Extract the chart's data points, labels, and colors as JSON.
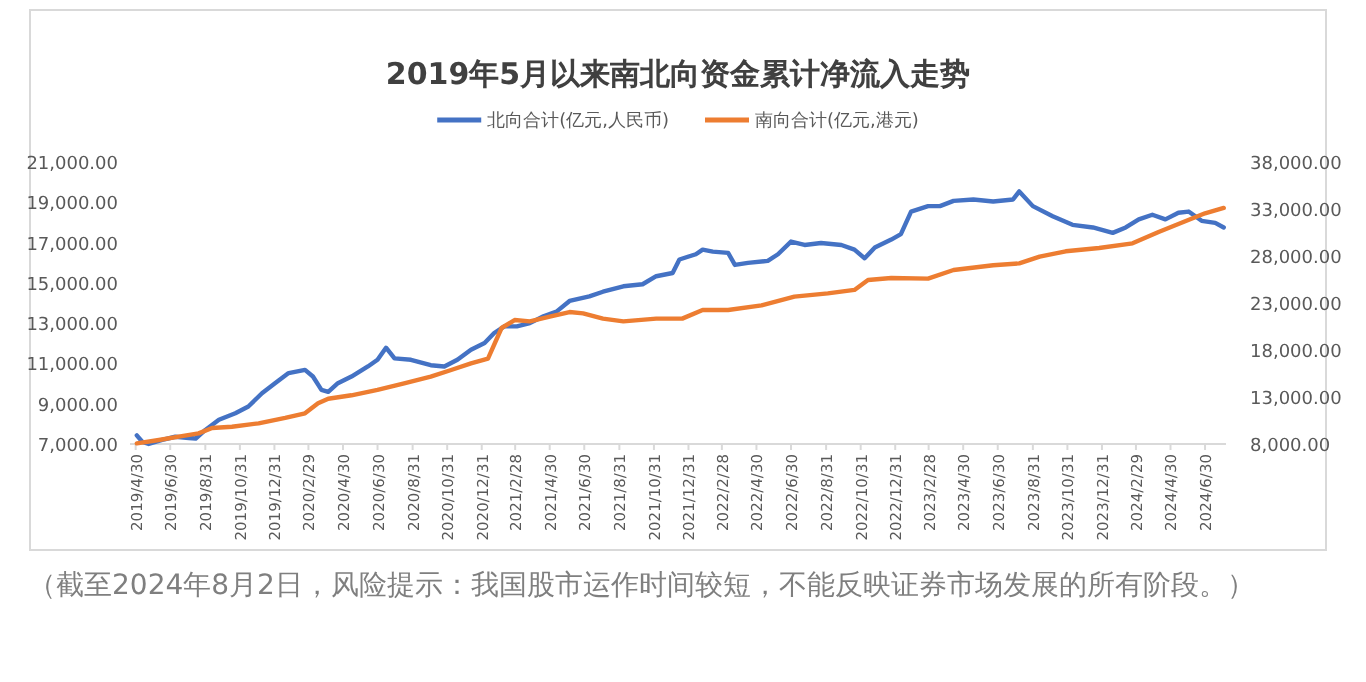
{
  "chart_data": {
    "type": "line",
    "title": "2019年5月以来南北向资金累计净流入走势",
    "annotations": [
      "（截至2024年8月2日，风险提示：我国股市运作时间较短，不能反映证券市场发展的所有阶段。）"
    ],
    "legend": "top",
    "marker": "none",
    "line_style": "solid",
    "grid": false,
    "xlim": [
      "2019-04-20",
      "2024-08-06"
    ],
    "xticks": [
      {
        "value": "2019-04-30",
        "label": "2019/4/30"
      },
      {
        "value": "2019-06-30",
        "label": "2019/6/30"
      },
      {
        "value": "2019-08-31",
        "label": "2019/8/31"
      },
      {
        "value": "2019-10-31",
        "label": "2019/10/31"
      },
      {
        "value": "2019-12-31",
        "label": "2019/12/31"
      },
      {
        "value": "2020-02-29",
        "label": "2020/2/29"
      },
      {
        "value": "2020-04-30",
        "label": "2020/4/30"
      },
      {
        "value": "2020-06-30",
        "label": "2020/6/30"
      },
      {
        "value": "2020-08-31",
        "label": "2020/8/31"
      },
      {
        "value": "2020-10-31",
        "label": "2020/10/31"
      },
      {
        "value": "2020-12-31",
        "label": "2020/12/31"
      },
      {
        "value": "2021-02-28",
        "label": "2021/2/28"
      },
      {
        "value": "2021-04-30",
        "label": "2021/4/30"
      },
      {
        "value": "2021-06-30",
        "label": "2021/6/30"
      },
      {
        "value": "2021-08-31",
        "label": "2021/8/31"
      },
      {
        "value": "2021-10-31",
        "label": "2021/10/31"
      },
      {
        "value": "2021-12-31",
        "label": "2021/12/31"
      },
      {
        "value": "2022-02-28",
        "label": "2022/2/28"
      },
      {
        "value": "2022-04-30",
        "label": "2022/4/30"
      },
      {
        "value": "2022-06-30",
        "label": "2022/6/30"
      },
      {
        "value": "2022-08-31",
        "label": "2022/8/31"
      },
      {
        "value": "2022-10-31",
        "label": "2022/10/31"
      },
      {
        "value": "2022-12-31",
        "label": "2022/12/31"
      },
      {
        "value": "2023-02-28",
        "label": "2023/2/28"
      },
      {
        "value": "2023-04-30",
        "label": "2023/4/30"
      },
      {
        "value": "2023-06-30",
        "label": "2023/6/30"
      },
      {
        "value": "2023-08-31",
        "label": "2023/8/31"
      },
      {
        "value": "2023-10-31",
        "label": "2023/10/31"
      },
      {
        "value": "2023-12-31",
        "label": "2023/12/31"
      },
      {
        "value": "2024-02-29",
        "label": "2024/2/29"
      },
      {
        "value": "2024-04-30",
        "label": "2024/4/30"
      },
      {
        "value": "2024-06-30",
        "label": "2024/6/30"
      }
    ],
    "ylim": [
      7000,
      21000
    ],
    "yticks": [
      {
        "value": 7000,
        "label": "7,000.00"
      },
      {
        "value": 9000,
        "label": "9,000.00"
      },
      {
        "value": 11000,
        "label": "11,000.00"
      },
      {
        "value": 13000,
        "label": "13,000.00"
      },
      {
        "value": 15000,
        "label": "15,000.00"
      },
      {
        "value": 17000,
        "label": "17,000.00"
      },
      {
        "value": 19000,
        "label": "19,000.00"
      },
      {
        "value": 21000,
        "label": "21,000.00"
      }
    ],
    "y2lim": [
      8000,
      38000
    ],
    "y2ticks": [
      {
        "value": 8000,
        "label": "8,000.00"
      },
      {
        "value": 13000,
        "label": "13,000.00"
      },
      {
        "value": 18000,
        "label": "18,000.00"
      },
      {
        "value": 23000,
        "label": "23,000.00"
      },
      {
        "value": 28000,
        "label": "28,000.00"
      },
      {
        "value": 33000,
        "label": "33,000.00"
      },
      {
        "value": 38000,
        "label": "38,000.00"
      }
    ],
    "series": [
      {
        "name": "北向合计(亿元,人民币)",
        "color": "#4472c4",
        "axis": "y",
        "x": [
          "2019-05-02",
          "2019-05-12",
          "2019-05-23",
          "2019-06-16",
          "2019-07-09",
          "2019-08-02",
          "2019-08-14",
          "2019-08-31",
          "2019-09-24",
          "2019-10-23",
          "2019-11-15",
          "2019-12-09",
          "2020-01-01",
          "2020-01-25",
          "2020-02-23",
          "2020-03-08",
          "2020-03-23",
          "2020-04-04",
          "2020-04-21",
          "2020-05-15",
          "2020-06-13",
          "2020-06-30",
          "2020-07-15",
          "2020-07-30",
          "2020-08-28",
          "2020-10-02",
          "2020-10-26",
          "2020-11-18",
          "2020-12-12",
          "2021-01-05",
          "2021-01-22",
          "2021-02-09",
          "2021-03-03",
          "2021-03-26",
          "2021-04-19",
          "2021-05-12",
          "2021-06-04",
          "2021-07-09",
          "2021-08-02",
          "2021-09-07",
          "2021-10-11",
          "2021-11-04",
          "2021-12-03",
          "2021-12-15",
          "2022-01-13",
          "2022-01-25",
          "2022-02-12",
          "2022-03-11",
          "2022-03-23",
          "2022-04-15",
          "2022-05-20",
          "2022-06-07",
          "2022-06-30",
          "2022-07-24",
          "2022-08-22",
          "2022-09-27",
          "2022-10-20",
          "2022-11-07",
          "2022-11-25",
          "2022-12-24",
          "2023-01-10",
          "2023-01-28",
          "2023-02-27",
          "2023-03-20",
          "2023-04-13",
          "2023-05-18",
          "2023-06-22",
          "2023-07-27",
          "2023-08-07",
          "2023-08-31",
          "2023-10-05",
          "2023-11-09",
          "2023-12-15",
          "2024-01-19",
          "2024-02-11",
          "2024-03-05",
          "2024-03-29",
          "2024-04-21",
          "2024-05-14",
          "2024-06-01",
          "2024-06-24",
          "2024-07-18",
          "2024-08-02"
        ],
        "values": [
          7430,
          7100,
          7000,
          7200,
          7360,
          7300,
          7270,
          7700,
          8200,
          8530,
          8860,
          9520,
          10020,
          10520,
          10680,
          10350,
          9690,
          9590,
          10020,
          10350,
          10850,
          11180,
          11780,
          11250,
          11180,
          10910,
          10850,
          11180,
          11680,
          12010,
          12510,
          12840,
          12840,
          13000,
          13340,
          13570,
          14100,
          14330,
          14560,
          14830,
          14930,
          15330,
          15490,
          16160,
          16420,
          16650,
          16550,
          16490,
          15890,
          15990,
          16090,
          16420,
          17050,
          16880,
          16980,
          16880,
          16650,
          16220,
          16750,
          17150,
          17420,
          18540,
          18810,
          18810,
          19070,
          19140,
          19040,
          19140,
          19540,
          18810,
          18310,
          17880,
          17750,
          17480,
          17750,
          18150,
          18380,
          18150,
          18480,
          18540,
          18080,
          17980,
          17750
        ]
      },
      {
        "name": "南向合计(亿元,港元)",
        "color": "#ed7d31",
        "axis": "y2",
        "x": [
          "2019-05-02",
          "2019-06-10",
          "2019-07-15",
          "2019-08-19",
          "2019-09-12",
          "2019-10-17",
          "2019-12-03",
          "2020-01-19",
          "2020-02-23",
          "2020-03-17",
          "2020-04-04",
          "2020-05-15",
          "2020-06-30",
          "2020-08-16",
          "2020-10-02",
          "2020-11-07",
          "2020-12-12",
          "2021-01-11",
          "2021-02-04",
          "2021-02-27",
          "2021-03-26",
          "2021-04-30",
          "2021-06-04",
          "2021-06-28",
          "2021-08-02",
          "2021-09-07",
          "2021-11-04",
          "2021-12-20",
          "2022-01-25",
          "2022-03-11",
          "2022-05-09",
          "2022-07-06",
          "2022-09-03",
          "2022-10-20",
          "2022-11-13",
          "2022-12-24",
          "2023-02-27",
          "2023-04-13",
          "2023-06-22",
          "2023-08-07",
          "2023-09-12",
          "2023-10-28",
          "2023-12-26",
          "2024-02-23",
          "2024-04-09",
          "2024-05-26",
          "2024-06-30",
          "2024-08-02"
        ],
        "values": [
          8070,
          8430,
          8780,
          9130,
          9700,
          9840,
          10200,
          10770,
          11260,
          12330,
          12820,
          13180,
          13750,
          14450,
          15160,
          15870,
          16580,
          17080,
          20340,
          21190,
          21050,
          21550,
          22040,
          21900,
          21340,
          21050,
          21340,
          21340,
          22260,
          22260,
          22750,
          23680,
          24030,
          24390,
          25450,
          25660,
          25590,
          26510,
          27010,
          27220,
          27930,
          28500,
          28850,
          29350,
          30560,
          31690,
          32540,
          33110
        ]
      }
    ]
  }
}
